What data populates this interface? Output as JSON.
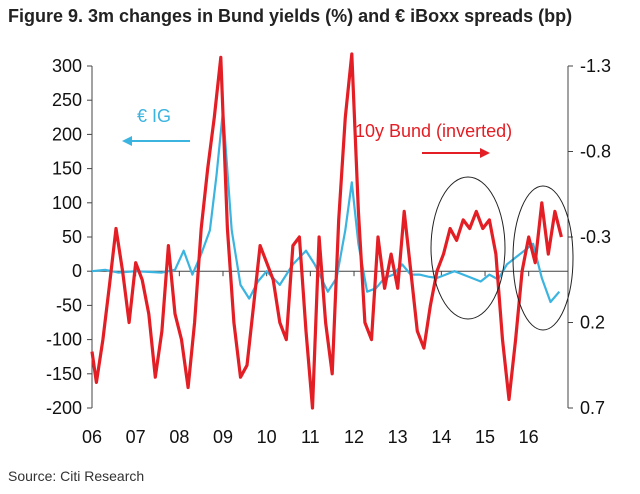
{
  "title": "Figure 9. 3m changes in Bund yields (%) and € iBoxx spreads (bp)",
  "source": "Source: Citi Research",
  "chart_data": {
    "type": "line",
    "title": "Figure 9. 3m changes in Bund yields (%) and € iBoxx spreads (bp)",
    "x_ticks": [
      "06",
      "07",
      "08",
      "09",
      "10",
      "11",
      "12",
      "13",
      "14",
      "15",
      "16"
    ],
    "left_axis": {
      "ticks": [
        300,
        250,
        200,
        150,
        100,
        50,
        0,
        -50,
        -100,
        -150,
        -200
      ],
      "ylim": [
        -200,
        300
      ]
    },
    "right_axis": {
      "ticks": [
        "-1.3",
        "-0.8",
        "-0.3",
        "0.2",
        "0.7"
      ],
      "values": [
        -1.3,
        -0.8,
        -0.3,
        0.2,
        0.7
      ],
      "ylim": [
        0.7,
        -1.3
      ],
      "inverted": true
    },
    "grid": false,
    "series": [
      {
        "name": "€ IG",
        "color": "#3bb4e0",
        "axis": "left",
        "x": [
          2006.0,
          2006.3,
          2006.6,
          2007.0,
          2007.3,
          2007.6,
          2007.9,
          2008.1,
          2008.3,
          2008.5,
          2008.7,
          2008.85,
          2009.0,
          2009.2,
          2009.4,
          2009.6,
          2009.8,
          2010.0,
          2010.3,
          2010.6,
          2010.9,
          2011.1,
          2011.4,
          2011.6,
          2011.8,
          2011.95,
          2012.1,
          2012.3,
          2012.5,
          2012.7,
          2012.9,
          2013.1,
          2013.3,
          2013.5,
          2013.7,
          2013.9,
          2014.1,
          2014.3,
          2014.5,
          2014.7,
          2014.9,
          2015.1,
          2015.3,
          2015.5,
          2015.7,
          2015.9,
          2016.1,
          2016.3,
          2016.5,
          2016.7
        ],
        "values": [
          0,
          2,
          -2,
          0,
          -1,
          -2,
          2,
          30,
          -5,
          25,
          60,
          140,
          235,
          60,
          -20,
          -40,
          -15,
          0,
          -20,
          10,
          30,
          10,
          -30,
          -10,
          60,
          130,
          40,
          -30,
          -25,
          -10,
          -5,
          10,
          -5,
          -5,
          -8,
          -10,
          -5,
          0,
          -5,
          -10,
          -15,
          -5,
          -12,
          10,
          20,
          30,
          40,
          -10,
          -45,
          -30
        ]
      },
      {
        "name": "10y Bund (inverted)",
        "color": "#e31e24",
        "axis": "right",
        "x": [
          2006.0,
          2006.1,
          2006.25,
          2006.4,
          2006.55,
          2006.7,
          2006.85,
          2007.0,
          2007.15,
          2007.3,
          2007.45,
          2007.6,
          2007.75,
          2007.9,
          2008.05,
          2008.2,
          2008.35,
          2008.5,
          2008.65,
          2008.8,
          2008.95,
          2009.1,
          2009.25,
          2009.4,
          2009.55,
          2009.7,
          2009.85,
          2010.0,
          2010.15,
          2010.3,
          2010.45,
          2010.6,
          2010.75,
          2010.9,
          2011.05,
          2011.2,
          2011.35,
          2011.5,
          2011.65,
          2011.8,
          2011.95,
          2012.1,
          2012.25,
          2012.4,
          2012.55,
          2012.7,
          2012.85,
          2013.0,
          2013.15,
          2013.3,
          2013.45,
          2013.6,
          2013.75,
          2013.9,
          2014.05,
          2014.2,
          2014.35,
          2014.5,
          2014.65,
          2014.8,
          2014.95,
          2015.1,
          2015.25,
          2015.4,
          2015.55,
          2015.7,
          2015.85,
          2016.0,
          2016.15,
          2016.3,
          2016.45,
          2016.6,
          2016.75
        ],
        "values": [
          0.37,
          0.55,
          0.3,
          -0.02,
          -0.35,
          -0.1,
          0.2,
          -0.15,
          -0.05,
          0.15,
          0.52,
          0.25,
          -0.25,
          0.15,
          0.3,
          0.58,
          0.2,
          -0.35,
          -0.7,
          -1.0,
          -1.35,
          -0.35,
          0.2,
          0.52,
          0.45,
          0.1,
          -0.25,
          -0.15,
          -0.05,
          0.2,
          0.3,
          -0.25,
          -0.3,
          0.25,
          0.7,
          -0.3,
          0.2,
          0.5,
          -0.4,
          -1.0,
          -1.37,
          -0.45,
          0.2,
          0.3,
          -0.3,
          0.0,
          -0.2,
          0.0,
          -0.45,
          -0.1,
          0.25,
          0.35,
          0.1,
          -0.1,
          -0.2,
          -0.35,
          -0.28,
          -0.4,
          -0.35,
          -0.45,
          -0.35,
          -0.4,
          -0.2,
          0.3,
          0.65,
          0.3,
          -0.1,
          -0.3,
          -0.15,
          -0.5,
          -0.2,
          -0.45,
          -0.3
        ]
      }
    ],
    "annotations": [
      {
        "text": "€ IG",
        "color": "#3bb4e0",
        "arrow": "left"
      },
      {
        "text": "10y Bund (inverted)",
        "color": "#e31e24",
        "arrow": "right"
      },
      {
        "shape": "ellipse",
        "around": "2014-2015"
      },
      {
        "shape": "ellipse",
        "around": "2016"
      }
    ]
  }
}
